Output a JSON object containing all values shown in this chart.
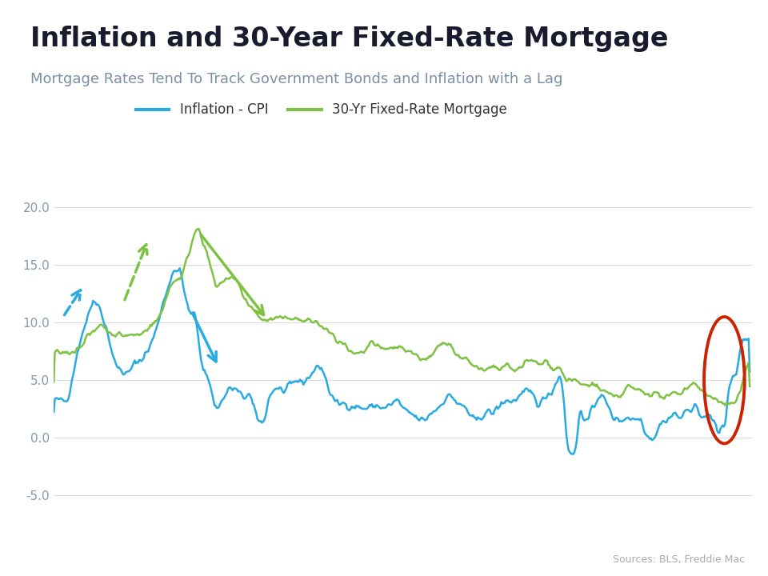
{
  "title": "Inflation and 30-Year Fixed-Rate Mortgage",
  "subtitle": "Mortgage Rates Tend To Track Government Bonds and Inflation with a Lag",
  "legend_labels": [
    "Inflation - CPI",
    "30-Yr Fixed-Rate Mortgage"
  ],
  "cpi_color": "#29ABE2",
  "mortgage_color": "#7DC242",
  "background_top": "#87CEEB",
  "title_color": "#1a1a2e",
  "subtitle_color": "#7a8fa6",
  "yticks": [
    -5.0,
    0.0,
    5.0,
    10.0,
    15.0,
    20.0
  ],
  "source_text": "Sources: BLS, Freddie Mac",
  "circle_color": "#CC2200",
  "grid_color": "#dddddd",
  "tick_color": "#8899aa"
}
